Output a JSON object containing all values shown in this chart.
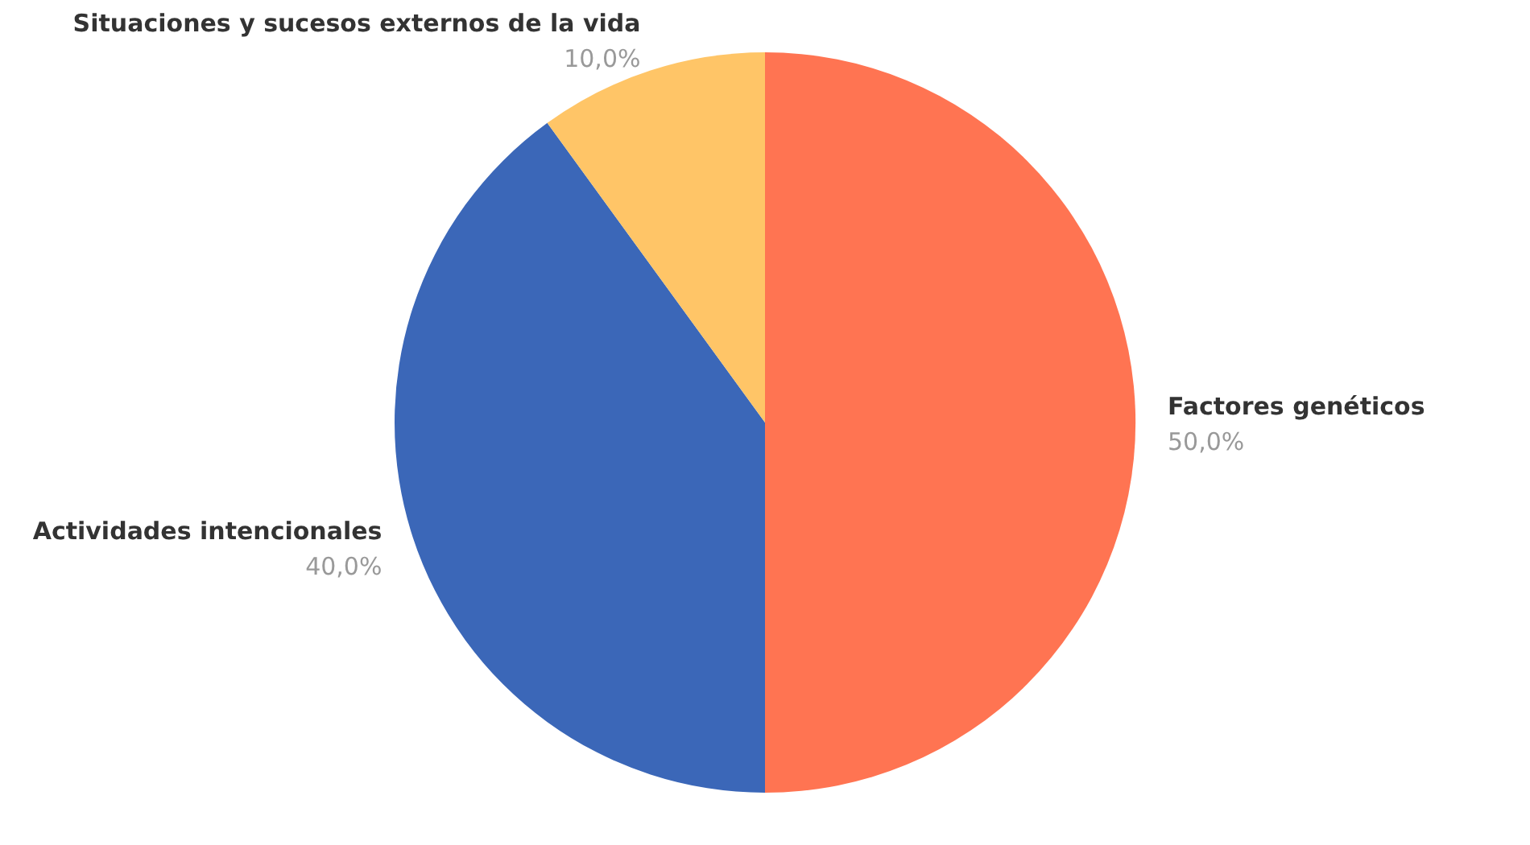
{
  "chart_data": {
    "type": "pie",
    "categories": [
      "Factores genéticos",
      "Actividades intencionales",
      "Situaciones y sucesos externos de la vida"
    ],
    "values": [
      50,
      40,
      10
    ],
    "colors": [
      "#ff7452",
      "#3b67b8",
      "#ffc567"
    ],
    "value_labels": [
      "50,0%",
      "40,0%",
      "10,0%"
    ]
  }
}
